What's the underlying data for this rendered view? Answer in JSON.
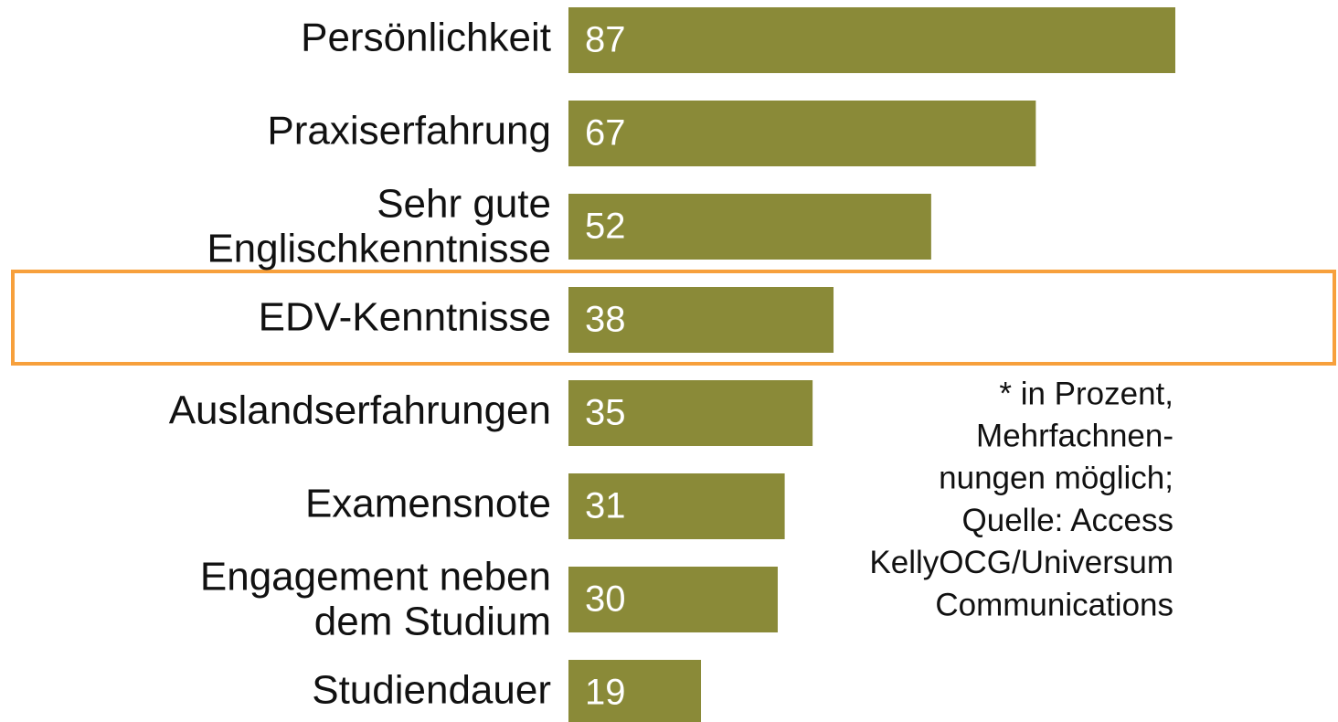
{
  "chart_data": {
    "type": "bar",
    "categories": [
      [
        "Persönlichkeit"
      ],
      [
        "Praxiserfahrung"
      ],
      [
        "Sehr gute",
        "Englischkenntnisse"
      ],
      [
        "EDV-Kenntnisse"
      ],
      [
        "Auslandserfahrungen"
      ],
      [
        "Examensnote"
      ],
      [
        "Engagement neben",
        "dem Studium"
      ],
      [
        "Studiendauer"
      ]
    ],
    "values": [
      87,
      67,
      52,
      38,
      35,
      31,
      30,
      19
    ],
    "color": "#8a8a38",
    "annotation": [
      "* in Prozent,",
      "Mehrfachnen-",
      "nungen möglich;",
      "Quelle: Access",
      "KellyOCG/Universum",
      "Communications"
    ]
  }
}
